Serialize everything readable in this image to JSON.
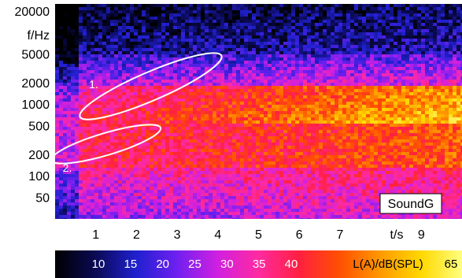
{
  "chart_data": {
    "type": "heatmap",
    "title": "",
    "xlabel": "t/s",
    "ylabel": "f/Hz",
    "x_ticks": [
      1,
      2,
      3,
      4,
      5,
      6,
      7,
      9
    ],
    "y_ticks": [
      50,
      100,
      200,
      500,
      1000,
      2000,
      5000,
      20000
    ],
    "y_scale": "log",
    "xlim": [
      0,
      10
    ],
    "ylim": [
      25,
      25000
    ],
    "colorbar": {
      "label": "L(A)/dB(SPL)",
      "ticks": [
        10,
        15,
        20,
        25,
        30,
        35,
        40,
        65
      ],
      "colors": [
        "#000000",
        "#0b0a55",
        "#2020d0",
        "#7020f0",
        "#d020e0",
        "#ff2aa0",
        "#ff2040",
        "#ff5000",
        "#ff9a00",
        "#ffd800",
        "#ffff80"
      ]
    },
    "annotations": [
      {
        "label": "1.",
        "t_start": 0.7,
        "t_end": 4.0,
        "f_start": 700,
        "f_end": 4500
      },
      {
        "label": "2.",
        "t_start": 0.0,
        "t_end": 2.5,
        "f_start": 170,
        "f_end": 450
      }
    ],
    "badge": "SoundG"
  }
}
